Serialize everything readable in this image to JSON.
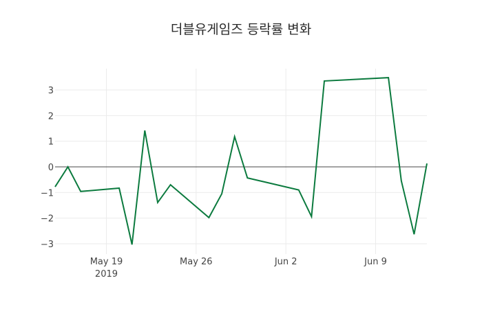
{
  "chart_data": {
    "type": "line",
    "title": "더블유게임즈 등락률 변화",
    "xlabel": "",
    "ylabel": "",
    "x": [
      "2019-05-15",
      "2019-05-16",
      "2019-05-17",
      "2019-05-20",
      "2019-05-21",
      "2019-05-22",
      "2019-05-23",
      "2019-05-24",
      "2019-05-27",
      "2019-05-28",
      "2019-05-29",
      "2019-05-30",
      "2019-06-03",
      "2019-06-04",
      "2019-06-05",
      "2019-06-10",
      "2019-06-11",
      "2019-06-12",
      "2019-06-13"
    ],
    "series": [
      {
        "name": "등락률",
        "color": "#0b7a3e",
        "values": [
          -0.78,
          0.0,
          -0.96,
          -0.83,
          -3.03,
          1.42,
          -1.39,
          -0.7,
          -1.98,
          -1.05,
          1.18,
          -0.43,
          -0.9,
          -1.94,
          3.35,
          3.48,
          -0.54,
          -2.63,
          0.13
        ]
      }
    ],
    "x_tick_labels": [
      {
        "date": "2019-05-19",
        "label": "May 19",
        "sub": "2019"
      },
      {
        "date": "2019-05-26",
        "label": "May 26",
        "sub": ""
      },
      {
        "date": "2019-06-02",
        "label": "Jun 2",
        "sub": ""
      },
      {
        "date": "2019-06-09",
        "label": "Jun 9",
        "sub": ""
      }
    ],
    "y_ticks": [
      -3,
      -2,
      -1,
      0,
      1,
      2,
      3
    ],
    "ylim": [
      -3.4,
      3.8
    ],
    "xlim": [
      "2019-05-15",
      "2019-06-13"
    ],
    "grid": true,
    "zero_line": true,
    "legend": "none"
  }
}
